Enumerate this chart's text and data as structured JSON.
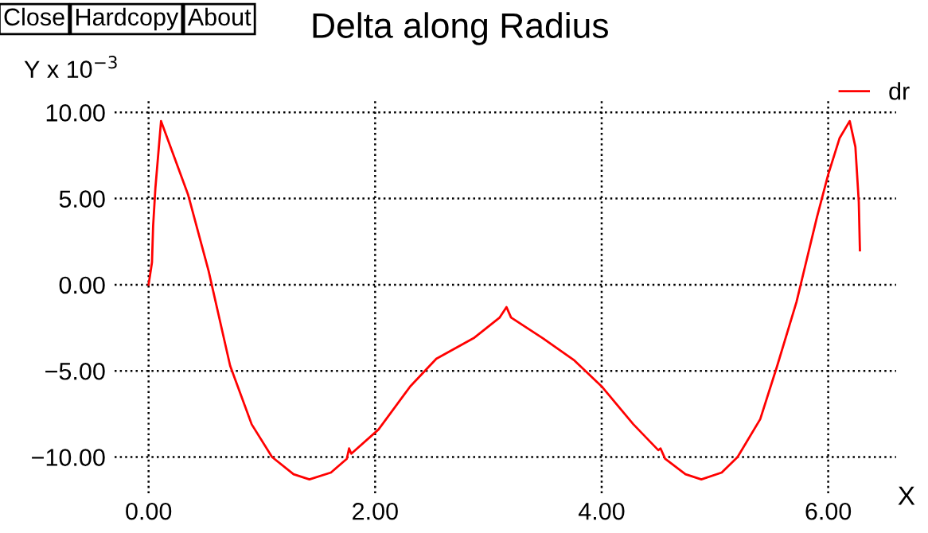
{
  "chart_data": {
    "type": "line",
    "title": "Delta along Radius",
    "ylabel": "Y x 10$^{−3}$",
    "xlabel": "X",
    "annotations": [
      "Close",
      "Hardcopy",
      "About"
    ],
    "series": [
      {
        "name": "dr",
        "color": "#ff0000",
        "x": [
          0,
          0.03,
          0.04,
          0.06,
          0.11,
          0.35,
          0.53,
          0.72,
          0.91,
          1.09,
          1.28,
          1.42,
          1.61,
          1.75,
          1.77,
          1.79,
          2.03,
          2.31,
          2.54,
          2.87,
          3.1,
          3.16,
          3.2,
          3.48,
          3.76,
          4.0,
          4.28,
          4.5,
          4.52,
          4.56,
          4.74,
          4.88,
          5.06,
          5.2,
          5.4,
          5.55,
          5.72,
          5.9,
          6.0,
          6.1,
          6.19,
          6.24,
          6.27,
          6.28
        ],
        "values": [
          0,
          1.3,
          3.4,
          5.6,
          9.5,
          5.2,
          0.8,
          -4.7,
          -8.1,
          -10.0,
          -11.0,
          -11.3,
          -10.9,
          -10.1,
          -9.5,
          -9.8,
          -8.4,
          -5.9,
          -4.3,
          -3.1,
          -1.9,
          -1.3,
          -1.9,
          -3.1,
          -4.4,
          -5.9,
          -8.1,
          -9.6,
          -9.5,
          -10.1,
          -11.0,
          -11.3,
          -10.9,
          -10.0,
          -7.8,
          -4.7,
          -1.0,
          3.9,
          6.4,
          8.5,
          9.5,
          8.0,
          4.8,
          2.0
        ]
      }
    ],
    "xlim": [
      -0.3,
      6.6
    ],
    "ylim": [
      -12.1,
      10.8
    ],
    "xticks": [
      {
        "value": 0,
        "label": "0.00"
      },
      {
        "value": 2,
        "label": "2.00"
      },
      {
        "value": 4,
        "label": "4.00"
      },
      {
        "value": 6,
        "label": "6.00"
      }
    ],
    "yticks": [
      {
        "value": -10,
        "label": "−10.00"
      },
      {
        "value": -5,
        "label": "−5.00"
      },
      {
        "value": 0,
        "label": "0.00"
      },
      {
        "value": 5,
        "label": "5.00"
      },
      {
        "value": 10,
        "label": "10.00"
      }
    ],
    "grid": true,
    "legend": "top right",
    "line_style": "solid",
    "marker": "none"
  }
}
